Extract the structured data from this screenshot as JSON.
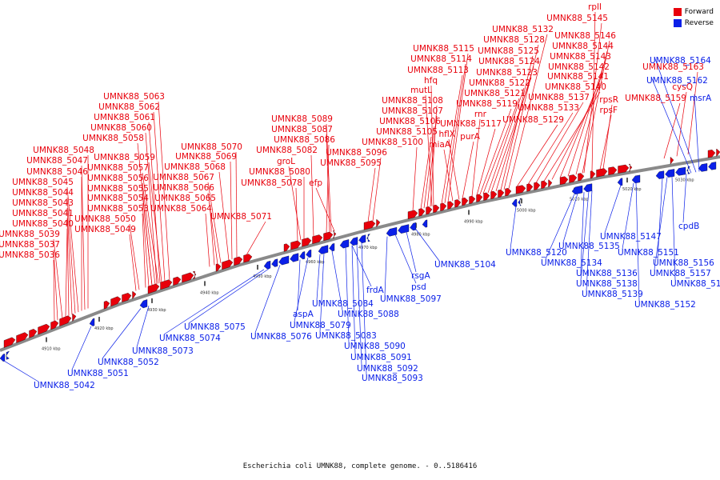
{
  "legend": {
    "forward_label": "Forward",
    "reverse_label": "Reverse",
    "forward_color": "#e8000b",
    "reverse_color": "#0b20e8"
  },
  "caption": "Escherichia coli UMNK88, complete genome. - 0..5186416",
  "axis_ticks": [
    "4910 kbp",
    "4920 kbp",
    "4930 kbp",
    "4940 kbp",
    "4950 kbp",
    "4960 kbp",
    "4970 kbp",
    "4980 kbp",
    "4990 kbp",
    "5000 kbp",
    "5010 kbp",
    "5020 kbp",
    "5030 kbp"
  ],
  "forward_labels": [
    "UMNK88_5036",
    "UMNK88_5037",
    "UMNK88_5039",
    "UMNK88_5040",
    "UMNK88_5041",
    "UMNK88_5043",
    "UMNK88_5044",
    "UMNK88_5045",
    "UMNK88_5046",
    "UMNK88_5047",
    "UMNK88_5048",
    "UMNK88_5049",
    "UMNK88_5050",
    "UMNK88_5053",
    "UMNK88_5054",
    "UMNK88_5055",
    "UMNK88_5056",
    "UMNK88_5057",
    "UMNK88_5059",
    "UMNK88_5058",
    "UMNK88_5060",
    "UMNK88_5061",
    "UMNK88_5062",
    "UMNK88_5063",
    "UMNK88_5064",
    "UMNK88_5065",
    "UMNK88_5066",
    "UMNK88_5067",
    "UMNK88_5068",
    "UMNK88_5069",
    "UMNK88_5070",
    "UMNK88_5071",
    "UMNK88_5078",
    "UMNK88_5080",
    "groL",
    "UMNK88_5082",
    "UMNK88_5086",
    "UMNK88_5087",
    "UMNK88_5089",
    "efp",
    "UMNK88_5095",
    "UMNK88_5096",
    "UMNK88_5100",
    "UMNK88_5105",
    "UMNK88_5106",
    "UMNK88_5107",
    "UMNK88_5108",
    "mutL",
    "hfq",
    "UMNK88_5113",
    "UMNK88_5114",
    "UMNK88_5115",
    "miaA",
    "hflX",
    "purA",
    "rnr",
    "UMNK88_5117",
    "UMNK88_5119",
    "UMNK88_5121",
    "UMNK88_5122",
    "UMNK88_5123",
    "UMNK88_5124",
    "UMNK88_5125",
    "UMNK88_5128",
    "UMNK88_5132",
    "UMNK88_5129",
    "UMNK88_5133",
    "UMNK88_5137",
    "UMNK88_5140",
    "UMNK88_5141",
    "UMNK88_5142",
    "UMNK88_5143",
    "UMNK88_5144",
    "UMNK88_5146",
    "UMNK88_5145",
    "rplI",
    "rpsF",
    "rpsR",
    "UMNK88_5159",
    "cysQ",
    "UMNK88_5163"
  ],
  "reverse_labels": [
    "UMNK88_5042",
    "UMNK88_5051",
    "UMNK88_5052",
    "UMNK88_5073",
    "UMNK88_5074",
    "UMNK88_5075",
    "UMNK88_5076",
    "aspA",
    "UMNK88_5079",
    "UMNK88_5084",
    "UMNK88_5083",
    "UMNK88_5088",
    "UMNK88_5090",
    "UMNK88_5091",
    "UMNK88_5092",
    "UMNK88_5093",
    "frdA",
    "psd",
    "rsgA",
    "UMNK88_5097",
    "UMNK88_5104",
    "UMNK88_5120",
    "UMNK88_5134",
    "UMNK88_5135",
    "UMNK88_5136",
    "UMNK88_5138",
    "UMNK88_5139",
    "UMNK88_5147",
    "UMNK88_5151",
    "UMNK88_5152",
    "UMNK88_5156",
    "UMNK88_5157",
    "UMNK88_5158",
    "cpdB",
    "msrA",
    "UMNK88_5162",
    "UMNK88_5164"
  ]
}
